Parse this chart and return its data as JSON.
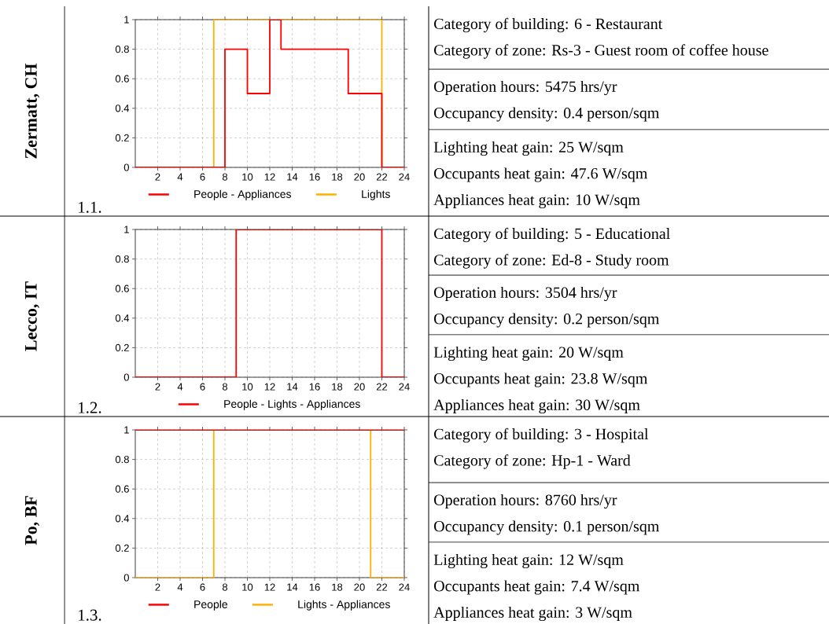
{
  "chart_data": [
    {
      "type": "step",
      "title": "Zermatt, CH",
      "annotations": [
        "1.1."
      ],
      "x": [
        0,
        8,
        10,
        12,
        13,
        19,
        22,
        24
      ],
      "series": [
        {
          "name": "People - Appliances",
          "color": "#ff0000",
          "values": [
            0,
            0.8,
            0.5,
            1,
            0.8,
            0.5,
            0,
            0
          ]
        },
        {
          "name": "Lights",
          "color": "#ffb000",
          "x": [
            0,
            7,
            22,
            24
          ],
          "values": [
            0,
            1,
            0,
            0
          ]
        }
      ],
      "xlim": [
        0,
        24
      ],
      "ylim": [
        0,
        1
      ],
      "xticks": [
        2,
        4,
        6,
        8,
        10,
        12,
        14,
        16,
        18,
        20,
        22,
        24
      ],
      "yticks": [
        0,
        0.2,
        0.4,
        0.6,
        0.8,
        1
      ],
      "grid": true,
      "legend": "bottom"
    },
    {
      "type": "other",
      "annotations": [
        "Category of building: 6 - Restaurant",
        "Category of zone: Rs-3 - Guest room of coffee house"
      ]
    },
    {
      "type": "other",
      "annotations": [
        "Operation hours: 5475 hrs/yr",
        "Occupancy density: 0.4 person/sqm"
      ]
    },
    {
      "type": "other",
      "annotations": [
        "Lighting heat gain: 25 W/sqm",
        "Occupants heat gain: 47.6 W/sqm",
        "Appliances heat gain: 10 W/sqm"
      ]
    },
    {
      "type": "step",
      "title": "Lecco, IT",
      "annotations": [
        "1.2."
      ],
      "x": [
        0,
        9,
        22,
        24
      ],
      "series": [
        {
          "name": "People - Lights - Appliances",
          "color": "#ff0000",
          "values": [
            0,
            1,
            0,
            0
          ]
        }
      ],
      "xlim": [
        0,
        24
      ],
      "ylim": [
        0,
        1
      ],
      "xticks": [
        2,
        4,
        6,
        8,
        10,
        12,
        14,
        16,
        18,
        20,
        22,
        24
      ],
      "yticks": [
        0,
        0.2,
        0.4,
        0.6,
        0.8,
        1
      ],
      "grid": true,
      "legend": "bottom"
    },
    {
      "type": "other",
      "annotations": [
        "Category of building: 5 - Educational",
        "Category of zone: Ed-8 - Study room"
      ]
    },
    {
      "type": "other",
      "annotations": [
        "Operation hours: 3504 hrs/yr",
        "Occupancy density: 0.2 person/sqm"
      ]
    },
    {
      "type": "other",
      "annotations": [
        "Lighting heat gain: 20 W/sqm",
        "Occupants heat gain: 23.8 W/sqm",
        "Appliances heat gain: 30 W/sqm"
      ]
    },
    {
      "type": "step",
      "title": "Po, BF",
      "annotations": [
        "1.3."
      ],
      "x": [
        0,
        24
      ],
      "series": [
        {
          "name": "People",
          "color": "#ff0000",
          "values": [
            1,
            1
          ]
        },
        {
          "name": "Lights - Appliances",
          "color": "#ffb000",
          "x": [
            0,
            7,
            21,
            24
          ],
          "values": [
            0,
            1,
            0,
            0
          ]
        }
      ],
      "xlim": [
        0,
        24
      ],
      "ylim": [
        0,
        1
      ],
      "xticks": [
        2,
        4,
        6,
        8,
        10,
        12,
        14,
        16,
        18,
        20,
        22,
        24
      ],
      "yticks": [
        0,
        0.2,
        0.4,
        0.6,
        0.8,
        1
      ],
      "grid": true,
      "legend": "bottom"
    },
    {
      "type": "other",
      "annotations": [
        "Category of building: 3 - Hospital",
        "Category of zone: Hp-1 - Ward"
      ]
    },
    {
      "type": "other",
      "annotations": [
        "Operation hours: 8760 hrs/yr",
        "Occupancy density: 0.1 person/sqm"
      ]
    },
    {
      "type": "other",
      "annotations": [
        "Lighting heat gain: 12 W/sqm",
        "Occupants heat gain: 7.4 W/sqm",
        "Appliances heat gain: 3 W/sqm"
      ]
    }
  ]
}
